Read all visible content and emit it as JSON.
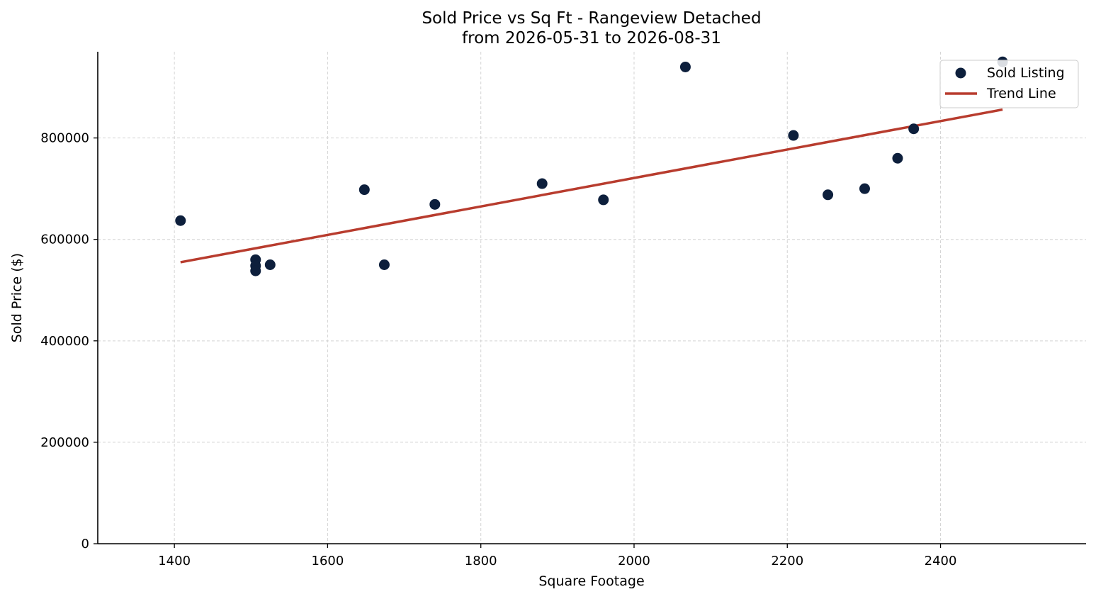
{
  "chart_data": {
    "type": "scatter",
    "title": "Sold Price vs Sq Ft - Rangeview Detached",
    "subtitle": "from 2026-05-31 to 2026-08-31",
    "xlabel": "Square Footage",
    "ylabel": "Sold Price ($)",
    "xlim": [
      1300,
      2590
    ],
    "ylim": [
      0,
      970000
    ],
    "xticks": [
      1400,
      1600,
      1800,
      2000,
      2200,
      2400
    ],
    "xtick_labels": [
      "1400",
      "1600",
      "1800",
      "2000",
      "2200",
      "2400"
    ],
    "yticks": [
      0,
      200000,
      400000,
      600000,
      800000
    ],
    "ytick_labels": [
      "0",
      "200000",
      "400000",
      "600000",
      "800000"
    ],
    "grid": true,
    "legend_position": "top-right",
    "series": [
      {
        "name": "Sold Listing",
        "kind": "scatter",
        "color": "#0d1f3c",
        "points": [
          {
            "x": 1408,
            "y": 637000
          },
          {
            "x": 1506,
            "y": 560000
          },
          {
            "x": 1506,
            "y": 548000
          },
          {
            "x": 1506,
            "y": 538000
          },
          {
            "x": 1525,
            "y": 550000
          },
          {
            "x": 1648,
            "y": 698000
          },
          {
            "x": 1674,
            "y": 550000
          },
          {
            "x": 1740,
            "y": 669000
          },
          {
            "x": 1880,
            "y": 710000
          },
          {
            "x": 1960,
            "y": 678000
          },
          {
            "x": 2067,
            "y": 940000
          },
          {
            "x": 2208,
            "y": 805000
          },
          {
            "x": 2253,
            "y": 688000
          },
          {
            "x": 2301,
            "y": 700000
          },
          {
            "x": 2344,
            "y": 760000
          },
          {
            "x": 2365,
            "y": 818000
          },
          {
            "x": 2481,
            "y": 950000
          }
        ]
      },
      {
        "name": "Trend Line",
        "kind": "line",
        "color": "#b83c2e",
        "points": [
          {
            "x": 1408,
            "y": 555000
          },
          {
            "x": 2481,
            "y": 856000
          }
        ]
      }
    ]
  }
}
